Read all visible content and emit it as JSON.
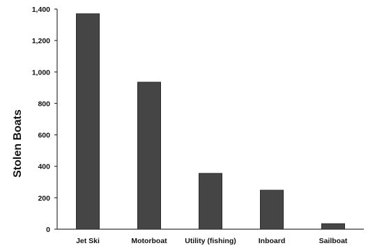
{
  "chart_data": {
    "type": "bar",
    "categories": [
      "Jet Ski",
      "Motorboat",
      "Utility (fishing)",
      "Inboard",
      "Sailboat"
    ],
    "values": [
      1370,
      935,
      355,
      248,
      35
    ],
    "ylabel": "Stolen Boats",
    "xlabel": "",
    "title": "",
    "ylim": [
      0,
      1400
    ],
    "yticks": [
      0,
      200,
      400,
      600,
      800,
      1000,
      1200,
      1400
    ],
    "ytick_labels": [
      "0",
      "200",
      "400",
      "600",
      "800",
      "1,000",
      "1,200",
      "1,400"
    ],
    "grid": false,
    "bar_color": "#454545"
  }
}
